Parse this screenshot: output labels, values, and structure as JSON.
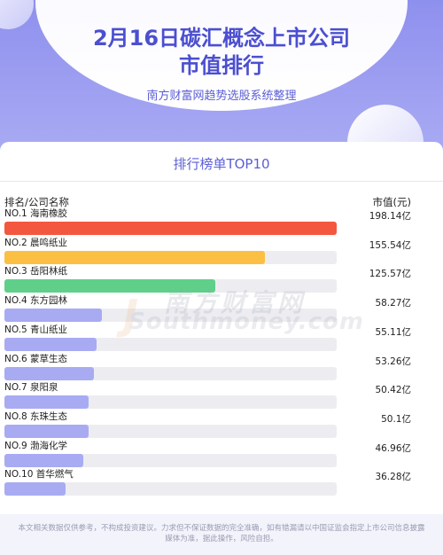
{
  "header": {
    "title_line1": "2月16日碳汇概念上市公司",
    "title_line2": "市值排行",
    "subtitle": "南方财富网趋势选股系统整理"
  },
  "panel": {
    "title": "排行榜单TOP10",
    "col_left": "排名/公司名称",
    "col_right": "市值(元)"
  },
  "watermark": {
    "cn": "南方财富网",
    "en": "Southmoney.com"
  },
  "chart_data": {
    "type": "bar",
    "categories": [
      "NO.1 海南橡胶",
      "NO.2 晨鸣纸业",
      "NO.3 岳阳林纸",
      "NO.4 东方园林",
      "NO.5 青山纸业",
      "NO.6 蒙草生态",
      "NO.7 泉阳泉",
      "NO.8 东珠生态",
      "NO.9 渤海化学",
      "NO.10 首华燃气"
    ],
    "values": [
      198.14,
      155.54,
      125.57,
      58.27,
      55.11,
      53.26,
      50.42,
      50.1,
      46.96,
      36.28
    ],
    "labels": [
      "198.14亿",
      "155.54亿",
      "125.57亿",
      "58.27亿",
      "55.11亿",
      "53.26亿",
      "50.42亿",
      "50.1亿",
      "46.96亿",
      "36.28亿"
    ],
    "colors": [
      "#f4573f",
      "#fbc043",
      "#5fcf8a",
      "#a8abf2",
      "#a8abf2",
      "#a8abf2",
      "#a8abf2",
      "#a8abf2",
      "#a8abf2",
      "#a8abf2"
    ],
    "track_color": "#ededf1",
    "xlim": [
      0,
      198.14
    ],
    "orientation": "horizontal"
  },
  "footer": {
    "line1": "本文相关数据仅供参考，不构成投资建议。力求但不保证数据的完全准确，如有错漏请以中国证监会指定上市公司信息披露",
    "line2": "媒体为准，据此操作，风险自担。"
  }
}
